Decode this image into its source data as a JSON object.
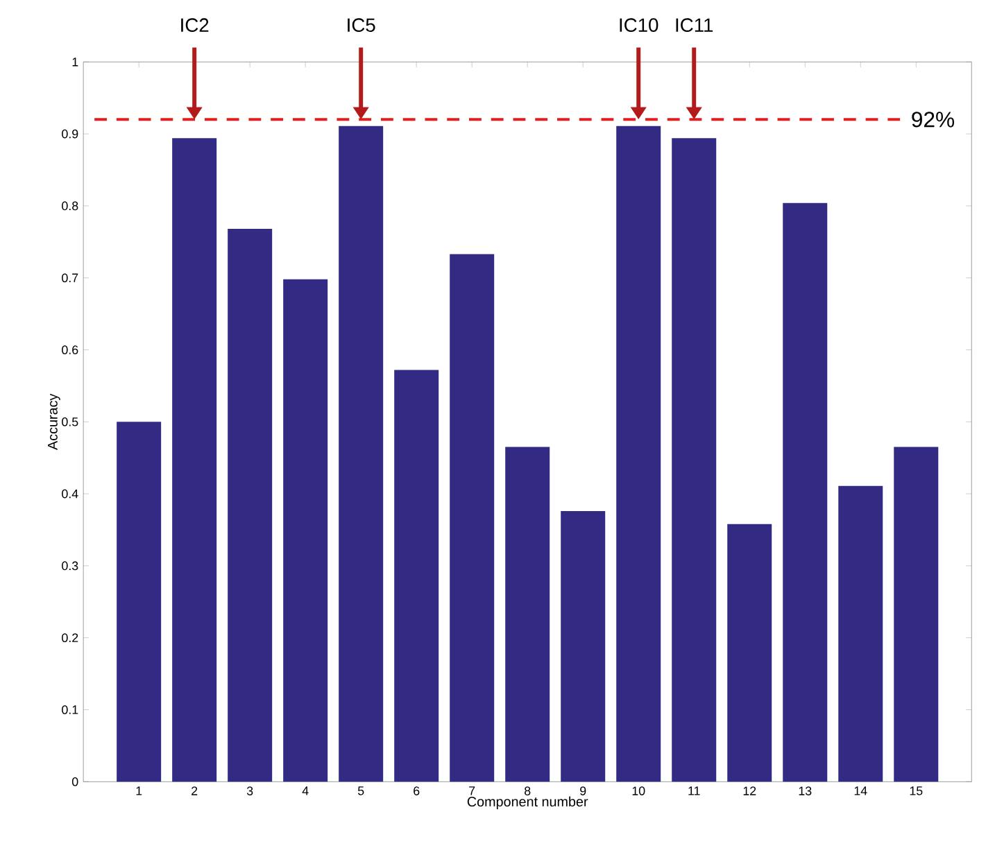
{
  "chart_data": {
    "type": "bar",
    "xlabel": "Component number",
    "ylabel": "Accuracy",
    "categories": [
      "1",
      "2",
      "3",
      "4",
      "5",
      "6",
      "7",
      "8",
      "9",
      "10",
      "11",
      "12",
      "13",
      "14",
      "15"
    ],
    "values": [
      0.5,
      0.894,
      0.768,
      0.698,
      0.911,
      0.572,
      0.733,
      0.465,
      0.376,
      0.911,
      0.894,
      0.358,
      0.804,
      0.411,
      0.465
    ],
    "color": "#332a84",
    "ylim": [
      0,
      1
    ],
    "yticks": [
      0,
      0.1,
      0.2,
      0.3,
      0.4,
      0.5,
      0.6,
      0.7,
      0.8,
      0.9,
      1
    ],
    "ref_lines": [
      {
        "axis": "y",
        "value": 0.92,
        "label": "92%",
        "color": "#e02020",
        "line_style": "dashed"
      }
    ],
    "annotations": [
      {
        "text": "IC2",
        "x": "2",
        "y": 0.92
      },
      {
        "text": "IC5",
        "x": "5",
        "y": 0.92
      },
      {
        "text": "IC10",
        "x": "10",
        "y": 0.92
      },
      {
        "text": "IC11",
        "x": "11",
        "y": 0.92
      }
    ]
  }
}
